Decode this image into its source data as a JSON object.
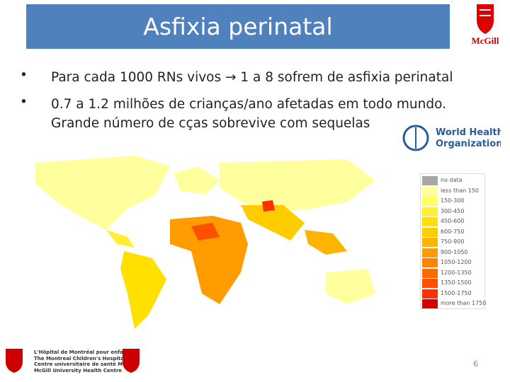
{
  "header": {
    "title": "Asfixia perinatal",
    "logo": "McGill"
  },
  "bullets": [
    "Para cada 1000 RNs vivos → 1 a 8 sofrem de asfixia perinatal",
    "0.7 a 1.2 milhões de crianças/ano afetadas em todo mundo. Grande número de cças sobrevive com sequelas"
  ],
  "who": {
    "line1": "World Health",
    "line2": "Organization"
  },
  "legend": [
    {
      "label": "no data",
      "color": "#a6a6a6"
    },
    {
      "label": "less than 150",
      "color": "#ffff9e"
    },
    {
      "label": "150-300",
      "color": "#ffff66"
    },
    {
      "label": "300-450",
      "color": "#fff033"
    },
    {
      "label": "450-600",
      "color": "#ffe000"
    },
    {
      "label": "600-750",
      "color": "#ffcc00"
    },
    {
      "label": "750-900",
      "color": "#ffb400"
    },
    {
      "label": "900-1050",
      "color": "#ff9c00"
    },
    {
      "label": "1050-1200",
      "color": "#ff8400"
    },
    {
      "label": "1200-1350",
      "color": "#ff6a00"
    },
    {
      "label": "1350-1500",
      "color": "#ff5000"
    },
    {
      "label": "1500-1750",
      "color": "#ff3000"
    },
    {
      "label": "more than 1750",
      "color": "#d40000"
    }
  ],
  "footer": {
    "line1": "L'Hôpital de Montréal pour enfants",
    "line2": "The Montreal Children's Hospital",
    "line3": "Centre universitaire de santé McGill",
    "line4": "McGill University Health Centre",
    "page": "6"
  }
}
